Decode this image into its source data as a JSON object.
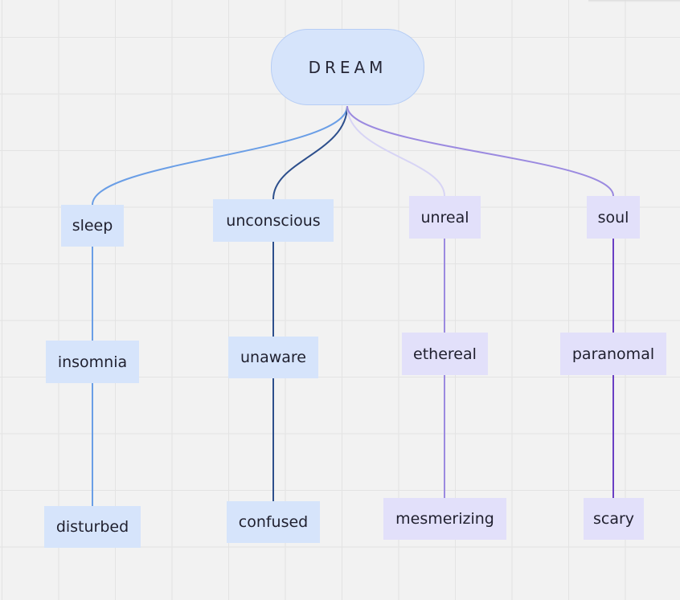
{
  "root": {
    "label": "DREAM"
  },
  "branches": [
    {
      "key": "sleep",
      "label": "sleep",
      "color": "#6a9ee6",
      "children": [
        "insomnia",
        "disturbed"
      ]
    },
    {
      "key": "unconscious",
      "label": "unconscious",
      "color": "#2d4f8c",
      "children": [
        "unaware",
        "confused"
      ]
    },
    {
      "key": "unreal",
      "label": "unreal",
      "color": "#d7d4f5",
      "children": [
        "ethereal",
        "mesmerizing"
      ]
    },
    {
      "key": "soul",
      "label": "soul",
      "color": "#9b8ae0",
      "children": [
        "paranomal",
        "scary"
      ]
    }
  ],
  "child_link_colors": {
    "sleep": "#6a9ee6",
    "unconscious": "#2d4f8c",
    "unreal": "#9b8ae0",
    "soul": "#6a3fc4"
  }
}
